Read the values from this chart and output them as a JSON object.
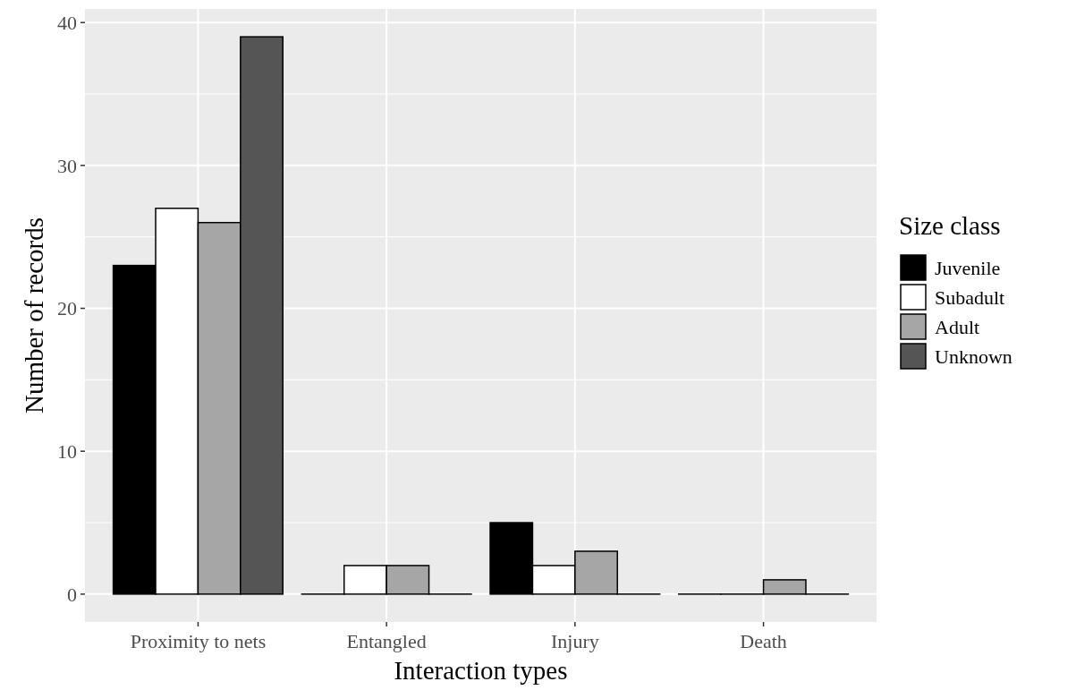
{
  "chart_data": {
    "type": "bar",
    "xlabel": "Interaction types",
    "ylabel": "Number of records",
    "legend_title": "Size class",
    "categories": [
      "Proximity to nets",
      "Entangled",
      "Injury",
      "Death"
    ],
    "series": [
      {
        "name": "Juvenile",
        "color": "#000000",
        "values": [
          23,
          0,
          5,
          0
        ]
      },
      {
        "name": "Subadult",
        "color": "#ffffff",
        "values": [
          27,
          2,
          2,
          0
        ]
      },
      {
        "name": "Adult",
        "color": "#a6a6a6",
        "values": [
          26,
          2,
          3,
          1
        ]
      },
      {
        "name": "Unknown",
        "color": "#555555",
        "values": [
          39,
          0,
          0,
          0
        ]
      }
    ],
    "ylim": [
      -1.95,
      40.95
    ],
    "yticks": [
      0,
      {
        "value": 5,
        "label": null
      },
      10,
      {
        "value": 15,
        "label": null
      },
      20,
      {
        "value": 25,
        "label": null
      },
      30,
      {
        "value": 35,
        "label": null
      },
      40
    ],
    "grid": true,
    "legend": "right"
  }
}
